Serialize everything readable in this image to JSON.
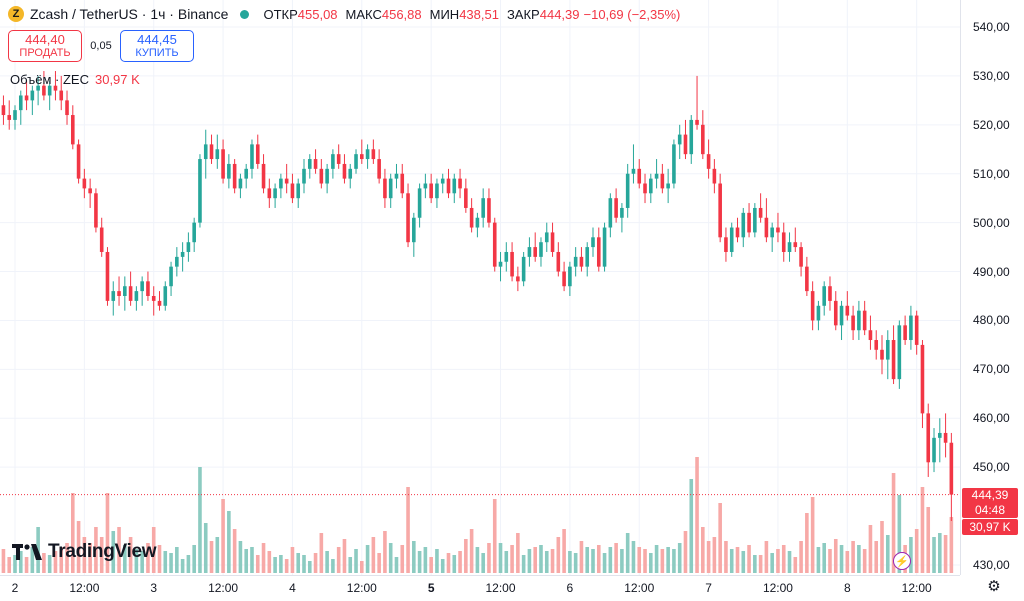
{
  "legend": {
    "coin_glyph": "Z",
    "title": "Zcash / TetherUS · 1ч · Binance",
    "open_label": "ОТКР",
    "open_value": "455,08",
    "high_label": "МАКС",
    "high_value": "456,88",
    "low_label": "МИН",
    "low_value": "438,51",
    "close_label": "ЗАКР",
    "close_value": "444,39",
    "change": "−10,69 (−2,35%)"
  },
  "trade": {
    "sell_price": "444,40",
    "sell_label": "ПРОДАТЬ",
    "spread": "0,05",
    "buy_price": "444,45",
    "buy_label": "КУПИТЬ"
  },
  "volume_legend": {
    "label": "Объём · ZEC",
    "value": "30,97 K"
  },
  "brand": {
    "name": "TradingView"
  },
  "price_tags": {
    "price": "444,39",
    "countdown": "04:48",
    "volume": "30,97 K"
  },
  "icons": {
    "lightning": "lightning-icon",
    "settings": "settings-gear-icon",
    "logo": "tradingview-logo-icon"
  },
  "colors": {
    "up": "#26a69a",
    "down": "#f23645",
    "vol_up": "#8ccbc1",
    "vol_down": "#f7a9a7"
  },
  "chart_data": {
    "type": "candlestick",
    "ylim": [
      427,
      544
    ],
    "y_ticks": [
      "540,00",
      "530,00",
      "520,00",
      "510,00",
      "500,00",
      "490,00",
      "480,00",
      "470,00",
      "460,00",
      "450,00",
      "430,00"
    ],
    "y_tick_values": [
      540,
      530,
      520,
      510,
      500,
      490,
      480,
      470,
      460,
      450,
      430
    ],
    "x_ticks": [
      {
        "label": "2",
        "hour": 0,
        "bold": false
      },
      {
        "label": "12:00",
        "hour": 12,
        "bold": false
      },
      {
        "label": "3",
        "hour": 24,
        "bold": false
      },
      {
        "label": "12:00",
        "hour": 36,
        "bold": false
      },
      {
        "label": "4",
        "hour": 48,
        "bold": false
      },
      {
        "label": "12:00",
        "hour": 60,
        "bold": false
      },
      {
        "label": "5",
        "hour": 72,
        "bold": true
      },
      {
        "label": "12:00",
        "hour": 84,
        "bold": false
      },
      {
        "label": "6",
        "hour": 96,
        "bold": false
      },
      {
        "label": "12:00",
        "hour": 108,
        "bold": false
      },
      {
        "label": "7",
        "hour": 120,
        "bold": false
      },
      {
        "label": "12:00",
        "hour": 132,
        "bold": false
      },
      {
        "label": "8",
        "hour": 144,
        "bold": false
      },
      {
        "label": "12:00",
        "hour": 156,
        "bold": false
      }
    ],
    "first_hour": -2,
    "last_close": 444.39,
    "candles": [
      [
        524,
        526,
        520,
        522,
        1.2
      ],
      [
        522,
        525,
        519,
        521,
        0.8
      ],
      [
        521,
        524,
        519,
        523,
        0.9
      ],
      [
        523,
        527,
        520,
        526,
        1.1
      ],
      [
        526,
        529,
        523,
        525,
        0.8
      ],
      [
        525,
        528,
        522,
        527,
        1.3
      ],
      [
        527,
        530,
        524,
        528,
        2.3
      ],
      [
        528,
        531,
        525,
        526,
        1.0
      ],
      [
        526,
        529,
        523,
        528,
        0.9
      ],
      [
        528,
        531,
        525,
        527,
        1.1
      ],
      [
        527,
        530,
        523,
        525,
        1.3
      ],
      [
        525,
        527,
        520,
        522,
        1.5
      ],
      [
        522,
        524,
        515,
        516,
        4.0
      ],
      [
        516,
        517,
        508,
        509,
        2.6
      ],
      [
        509,
        511,
        505,
        507,
        1.8
      ],
      [
        507,
        509,
        503,
        506,
        1.5
      ],
      [
        506,
        507,
        498,
        499,
        2.3
      ],
      [
        499,
        501,
        493,
        494,
        1.8
      ],
      [
        494,
        495,
        483,
        484,
        4.0
      ],
      [
        484,
        488,
        481,
        486,
        2.1
      ],
      [
        486,
        489,
        483,
        485,
        2.3
      ],
      [
        485,
        489,
        482,
        487,
        1.4
      ],
      [
        487,
        490,
        483,
        484,
        1.8
      ],
      [
        484,
        487,
        482,
        486,
        1.2
      ],
      [
        486,
        489,
        483,
        488,
        1.1
      ],
      [
        488,
        490,
        484,
        485,
        1.5
      ],
      [
        485,
        487,
        481,
        484,
        2.3
      ],
      [
        484,
        486,
        482,
        483,
        1.4
      ],
      [
        483,
        488,
        482,
        487,
        1.1
      ],
      [
        487,
        492,
        485,
        491,
        1.0
      ],
      [
        491,
        495,
        489,
        493,
        1.3
      ],
      [
        493,
        496,
        490,
        494,
        0.7
      ],
      [
        494,
        498,
        492,
        496,
        0.9
      ],
      [
        496,
        501,
        494,
        500,
        1.4
      ],
      [
        500,
        514,
        499,
        513,
        5.3
      ],
      [
        513,
        519,
        509,
        516,
        2.5
      ],
      [
        516,
        518,
        512,
        513,
        1.6
      ],
      [
        513,
        518,
        511,
        515,
        1.8
      ],
      [
        515,
        517,
        508,
        509,
        3.7
      ],
      [
        509,
        514,
        507,
        512,
        3.1
      ],
      [
        512,
        513,
        506,
        507,
        2.2
      ],
      [
        507,
        510,
        505,
        509,
        1.6
      ],
      [
        509,
        512,
        507,
        511,
        1.2
      ],
      [
        511,
        517,
        509,
        516,
        1.3
      ],
      [
        516,
        518,
        511,
        512,
        0.9
      ],
      [
        512,
        514,
        506,
        507,
        1.5
      ],
      [
        507,
        509,
        503,
        505,
        1.1
      ],
      [
        505,
        508,
        503,
        507,
        0.8
      ],
      [
        507,
        510,
        505,
        509,
        0.9
      ],
      [
        509,
        512,
        506,
        508,
        0.7
      ],
      [
        508,
        510,
        504,
        505,
        1.3
      ],
      [
        505,
        509,
        503,
        508,
        1.0
      ],
      [
        508,
        513,
        506,
        511,
        0.9
      ],
      [
        511,
        514,
        509,
        513,
        0.6
      ],
      [
        513,
        515,
        510,
        511,
        1.0
      ],
      [
        511,
        513,
        507,
        508,
        2.0
      ],
      [
        508,
        512,
        506,
        511,
        1.1
      ],
      [
        511,
        515,
        509,
        514,
        0.7
      ],
      [
        514,
        516,
        511,
        512,
        1.3
      ],
      [
        512,
        514,
        508,
        509,
        1.7
      ],
      [
        509,
        512,
        507,
        511,
        0.8
      ],
      [
        511,
        515,
        510,
        514,
        1.2
      ],
      [
        514,
        517,
        512,
        513,
        0.6
      ],
      [
        513,
        516,
        511,
        515,
        1.4
      ],
      [
        515,
        517,
        512,
        513,
        1.8
      ],
      [
        513,
        515,
        508,
        509,
        1.0
      ],
      [
        509,
        511,
        503,
        505,
        2.1
      ],
      [
        505,
        510,
        503,
        509,
        1.5
      ],
      [
        509,
        512,
        507,
        510,
        0.8
      ],
      [
        510,
        512,
        505,
        506,
        1.4
      ],
      [
        506,
        508,
        495,
        496,
        4.3
      ],
      [
        496,
        502,
        493,
        501,
        1.6
      ],
      [
        501,
        508,
        499,
        507,
        1.1
      ],
      [
        507,
        510,
        505,
        508,
        1.3
      ],
      [
        508,
        510,
        504,
        505,
        0.8
      ],
      [
        505,
        509,
        503,
        508,
        1.2
      ],
      [
        508,
        510,
        506,
        509,
        0.7
      ],
      [
        509,
        511,
        505,
        506,
        1.0
      ],
      [
        506,
        510,
        504,
        509,
        0.9
      ],
      [
        509,
        511,
        505,
        507,
        1.1
      ],
      [
        507,
        509,
        502,
        503,
        1.7
      ],
      [
        503,
        505,
        498,
        499,
        2.2
      ],
      [
        499,
        502,
        497,
        501,
        1.3
      ],
      [
        501,
        507,
        499,
        505,
        1.0
      ],
      [
        505,
        507,
        499,
        500,
        1.5
      ],
      [
        500,
        501,
        490,
        491,
        3.7
      ],
      [
        491,
        494,
        488,
        492,
        1.5
      ],
      [
        492,
        496,
        490,
        494,
        1.1
      ],
      [
        494,
        496,
        488,
        489,
        1.4
      ],
      [
        489,
        491,
        486,
        488,
        2.0
      ],
      [
        488,
        494,
        487,
        493,
        0.9
      ],
      [
        493,
        497,
        491,
        495,
        1.2
      ],
      [
        495,
        498,
        492,
        493,
        1.3
      ],
      [
        493,
        497,
        491,
        496,
        1.4
      ],
      [
        496,
        500,
        494,
        498,
        1.1
      ],
      [
        498,
        500,
        493,
        494,
        1.2
      ],
      [
        494,
        496,
        489,
        490,
        1.8
      ],
      [
        490,
        492,
        486,
        487,
        2.2
      ],
      [
        487,
        492,
        485,
        491,
        1.1
      ],
      [
        491,
        495,
        489,
        493,
        1.0
      ],
      [
        493,
        495,
        490,
        491,
        1.6
      ],
      [
        491,
        496,
        489,
        495,
        1.3
      ],
      [
        495,
        499,
        493,
        497,
        1.2
      ],
      [
        497,
        499,
        490,
        491,
        1.4
      ],
      [
        491,
        500,
        490,
        499,
        1.0
      ],
      [
        499,
        506,
        497,
        505,
        1.3
      ],
      [
        505,
        507,
        500,
        501,
        1.5
      ],
      [
        501,
        504,
        498,
        503,
        1.2
      ],
      [
        503,
        512,
        501,
        510,
        2.0
      ],
      [
        510,
        516,
        508,
        511,
        1.6
      ],
      [
        511,
        513,
        507,
        508,
        1.3
      ],
      [
        508,
        510,
        504,
        506,
        1.2
      ],
      [
        506,
        510,
        504,
        509,
        1.0
      ],
      [
        509,
        513,
        507,
        510,
        1.4
      ],
      [
        510,
        512,
        506,
        507,
        1.2
      ],
      [
        507,
        511,
        504,
        508,
        1.3
      ],
      [
        508,
        517,
        507,
        516,
        1.2
      ],
      [
        516,
        520,
        513,
        518,
        1.5
      ],
      [
        518,
        521,
        513,
        514,
        2.1
      ],
      [
        514,
        522,
        512,
        521,
        4.7
      ],
      [
        521,
        530,
        519,
        520,
        5.8
      ],
      [
        520,
        523,
        513,
        514,
        2.3
      ],
      [
        514,
        517,
        509,
        511,
        1.6
      ],
      [
        511,
        513,
        506,
        508,
        1.8
      ],
      [
        508,
        510,
        496,
        497,
        3.5
      ],
      [
        497,
        499,
        492,
        494,
        1.6
      ],
      [
        494,
        500,
        493,
        499,
        1.2
      ],
      [
        499,
        501,
        496,
        497,
        1.3
      ],
      [
        497,
        503,
        495,
        502,
        1.1
      ],
      [
        502,
        504,
        497,
        498,
        1.4
      ],
      [
        498,
        504,
        497,
        503,
        0.9
      ],
      [
        503,
        506,
        500,
        501,
        0.9
      ],
      [
        501,
        505,
        496,
        497,
        1.6
      ],
      [
        497,
        500,
        494,
        499,
        1.0
      ],
      [
        499,
        502,
        496,
        498,
        1.2
      ],
      [
        498,
        500,
        492,
        494,
        1.4
      ],
      [
        494,
        498,
        492,
        496,
        1.1
      ],
      [
        496,
        499,
        494,
        495,
        0.8
      ],
      [
        495,
        496,
        489,
        491,
        1.6
      ],
      [
        491,
        493,
        485,
        486,
        3.0
      ],
      [
        486,
        488,
        478,
        480,
        3.8
      ],
      [
        480,
        484,
        478,
        483,
        1.3
      ],
      [
        483,
        488,
        481,
        487,
        1.5
      ],
      [
        487,
        489,
        482,
        484,
        1.2
      ],
      [
        484,
        486,
        478,
        479,
        1.7
      ],
      [
        479,
        484,
        476,
        483,
        1.4
      ],
      [
        483,
        486,
        480,
        481,
        1.1
      ],
      [
        481,
        483,
        476,
        478,
        1.6
      ],
      [
        478,
        484,
        476,
        482,
        1.4
      ],
      [
        482,
        484,
        477,
        478,
        1.2
      ],
      [
        478,
        481,
        474,
        476,
        2.4
      ],
      [
        476,
        478,
        472,
        474,
        1.6
      ],
      [
        474,
        477,
        469,
        472,
        2.6
      ],
      [
        472,
        478,
        468,
        476,
        1.9
      ],
      [
        476,
        479,
        467,
        468,
        5.0
      ],
      [
        468,
        480,
        466,
        479,
        3.9
      ],
      [
        479,
        481,
        475,
        476,
        1.4
      ],
      [
        476,
        483,
        474,
        481,
        1.8
      ],
      [
        481,
        482,
        473,
        475,
        2.2
      ],
      [
        475,
        476,
        458,
        461,
        4.3
      ],
      [
        461,
        463,
        448,
        451,
        3.3
      ],
      [
        451,
        458,
        449,
        456,
        1.8
      ],
      [
        456,
        460,
        451,
        457,
        2.0
      ],
      [
        457,
        461,
        452,
        455,
        1.9
      ],
      [
        455,
        457,
        439,
        444.39,
        2.8
      ]
    ]
  }
}
